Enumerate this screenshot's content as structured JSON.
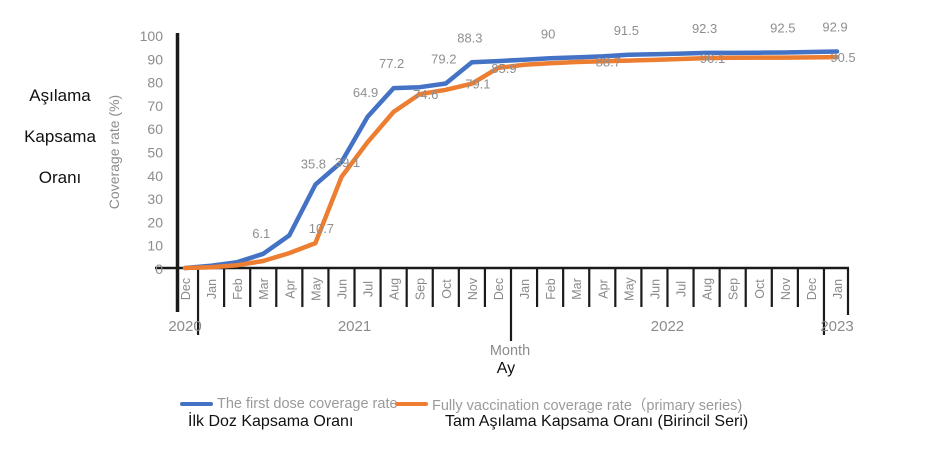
{
  "side_label": {
    "lines": [
      "Aşılama",
      "Kapsama",
      "Oranı"
    ]
  },
  "colors": {
    "blue": "#4472C4",
    "orange": "#ED7D31",
    "axis": "#1a1a1a",
    "gray_text": "#8c8c8c",
    "data_label": "#8f8f8f"
  },
  "chart_data": {
    "type": "line",
    "xlabel": "Month",
    "xlabel_tr": "Ay",
    "ylabel": "Coverage rate (%)",
    "ylim": [
      0,
      100
    ],
    "y_ticks": [
      100,
      90,
      80,
      70,
      60,
      50,
      40,
      30,
      20,
      10,
      0
    ],
    "grid": false,
    "legend_position": "bottom",
    "x_months": [
      "Dec",
      "Jan",
      "Feb",
      "Mar",
      "Apr",
      "May",
      "Jun",
      "Jul",
      "Aug",
      "Sep",
      "Oct",
      "Nov",
      "Dec",
      "Jan",
      "Feb",
      "Mar",
      "Apr",
      "May",
      "Jun",
      "Jul",
      "Aug",
      "Sep",
      "Oct",
      "Nov",
      "Dec",
      "Jan"
    ],
    "years": [
      {
        "label": "2020",
        "center_index": 0
      },
      {
        "label": "2021",
        "center_index": 6.5
      },
      {
        "label": "2022",
        "center_index": 18.5
      },
      {
        "label": "2023",
        "center_index": 25
      }
    ],
    "year_divider_indices": [
      0.5,
      12.5,
      24.5
    ],
    "series": [
      {
        "name": "The first dose coverage rate",
        "name_tr": "İlk Doz Kapsama Oranı",
        "color": "#4472C4",
        "values": [
          0,
          1,
          2.5,
          6.1,
          14,
          35.8,
          45.5,
          64.9,
          77.2,
          77.6,
          79.2,
          88.3,
          88.8,
          89.4,
          90,
          90.4,
          90.8,
          91.5,
          91.7,
          92,
          92.3,
          92.3,
          92.4,
          92.5,
          92.7,
          92.9
        ],
        "point_labels": [
          "",
          "",
          "",
          "6.1",
          "",
          "35.8",
          "",
          "64.9",
          "77.2",
          "",
          "79.2",
          "88.3",
          "",
          "",
          "90",
          "",
          "",
          "91.5",
          "",
          "",
          "92.3",
          "",
          "",
          "92.5",
          "",
          "92.9"
        ]
      },
      {
        "name": "Fully vaccination coverage rate (primary series)",
        "name_tr": "Tam Aşılama Kapsama Oranı (Birincil Seri)",
        "color": "#ED7D31",
        "values": [
          0,
          0.3,
          1.2,
          3,
          6.4,
          10.7,
          39.1,
          54,
          67,
          74.6,
          76.5,
          79.1,
          85.9,
          87.2,
          87.9,
          88.4,
          88.7,
          89,
          89.3,
          89.7,
          90.1,
          90.2,
          90.3,
          90.3,
          90.4,
          90.5
        ],
        "point_labels": [
          "",
          "",
          "",
          "",
          "",
          "10.7",
          "39.1",
          "",
          "",
          "74.6",
          "",
          "79.1",
          "85.9",
          "",
          "",
          "",
          "88.7",
          "",
          "",
          "",
          "90.1",
          "",
          "",
          "",
          "",
          "90.5"
        ]
      }
    ]
  },
  "legend": {
    "items": [
      {
        "label_en": "The first dose coverage rate",
        "label_tr": "İlk Doz Kapsama Oranı",
        "color": "#4472C4"
      },
      {
        "label_en": "Fully vaccination coverage rate（primary series)",
        "label_tr": "Tam Aşılama Kapsama Oranı (Birincil Seri)",
        "color": "#ED7D31"
      }
    ]
  }
}
